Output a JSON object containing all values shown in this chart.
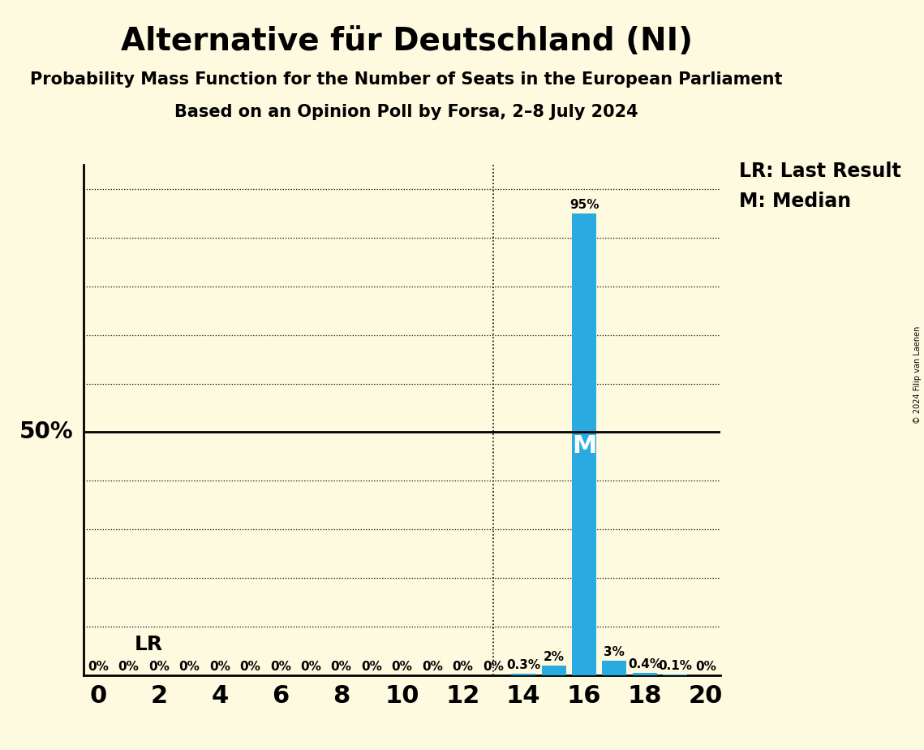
{
  "title": "Alternative für Deutschland (NI)",
  "subtitle1": "Probability Mass Function for the Number of Seats in the European Parliament",
  "subtitle2": "Based on an Opinion Poll by Forsa, 2–8 July 2024",
  "copyright": "© 2024 Filip van Laenen",
  "seats": [
    0,
    1,
    2,
    3,
    4,
    5,
    6,
    7,
    8,
    9,
    10,
    11,
    12,
    13,
    14,
    15,
    16,
    17,
    18,
    19,
    20
  ],
  "probabilities": [
    0.0,
    0.0,
    0.0,
    0.0,
    0.0,
    0.0,
    0.0,
    0.0,
    0.0,
    0.0,
    0.0,
    0.0,
    0.0,
    0.0,
    0.003,
    0.02,
    0.95,
    0.03,
    0.004,
    0.001,
    0.0
  ],
  "bar_labels": [
    "0%",
    "0%",
    "0%",
    "0%",
    "0%",
    "0%",
    "0%",
    "0%",
    "0%",
    "0%",
    "0%",
    "0%",
    "0%",
    "0%",
    "0.3%",
    "2%",
    "95%",
    "3%",
    "0.4%",
    "0.1%",
    "0%"
  ],
  "bar_color": "#29ABE2",
  "last_result_seat": 13,
  "median_seat": 16,
  "lr_label": "LR",
  "median_label": "M",
  "lr_legend": "LR: Last Result",
  "m_legend": "M: Median",
  "ylabel_50": "50%",
  "background_color": "#FEFAE0",
  "bar_label_fontsize": 11,
  "title_fontsize": 28,
  "subtitle_fontsize": 15,
  "ytick_50_fontsize": 20,
  "xtick_fontsize": 22,
  "legend_fontsize": 17,
  "lr_annotation_fontsize": 18,
  "median_label_fontsize": 22,
  "ylim": [
    0,
    1.05
  ],
  "xlim": [
    -0.5,
    20.5
  ],
  "xticks": [
    0,
    2,
    4,
    6,
    8,
    10,
    12,
    14,
    16,
    18,
    20
  ],
  "percent_50": 0.5,
  "grid_yticks": [
    0.0,
    0.1,
    0.2,
    0.3,
    0.4,
    0.6,
    0.7,
    0.8,
    0.9,
    1.0
  ]
}
